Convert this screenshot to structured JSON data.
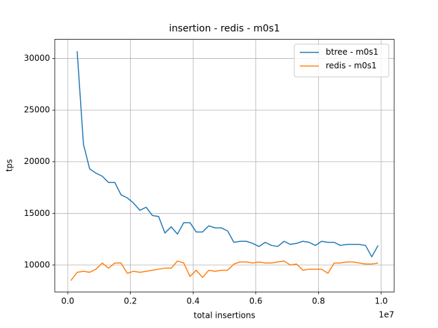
{
  "chart_data": {
    "type": "line",
    "title": "insertion - redis - m0s1",
    "xlabel": "total insertions",
    "ylabel": "tps",
    "x_offset_label": "1e7",
    "x": [
      100000,
      300000,
      500000,
      700000,
      900000,
      1100000,
      1300000,
      1500000,
      1700000,
      1900000,
      2100000,
      2300000,
      2500000,
      2700000,
      2900000,
      3100000,
      3300000,
      3500000,
      3700000,
      3900000,
      4100000,
      4300000,
      4500000,
      4700000,
      4900000,
      5100000,
      5300000,
      5500000,
      5700000,
      5900000,
      6100000,
      6300000,
      6500000,
      6700000,
      6900000,
      7100000,
      7300000,
      7500000,
      7700000,
      7900000,
      8100000,
      8300000,
      8500000,
      8700000,
      8900000,
      9100000,
      9300000,
      9500000,
      9700000,
      9900000
    ],
    "series": [
      {
        "name": "btree - m0s1",
        "color": "#1f77b4",
        "values": [
          null,
          30700,
          21700,
          19300,
          18900,
          18600,
          18000,
          18000,
          16800,
          16500,
          16000,
          15300,
          15600,
          14800,
          14700,
          13100,
          13700,
          13000,
          14100,
          14100,
          13200,
          13200,
          13800,
          13600,
          13600,
          13300,
          12200,
          12300,
          12300,
          12100,
          11800,
          12200,
          11900,
          11800,
          12300,
          12000,
          12100,
          12300,
          12200,
          11900,
          12300,
          12200,
          12200,
          11900,
          12000,
          12000,
          12000,
          11900,
          10800,
          11900
        ]
      },
      {
        "name": "redis - m0s1",
        "color": "#ff7f0e",
        "values": [
          8500,
          9300,
          9400,
          9300,
          9600,
          10200,
          9700,
          10200,
          10200,
          9200,
          9400,
          9300,
          9400,
          9500,
          9600,
          9700,
          9700,
          10400,
          10200,
          8900,
          9500,
          8800,
          9500,
          9400,
          9500,
          9500,
          10100,
          10300,
          10300,
          10200,
          10300,
          10200,
          10200,
          10300,
          10400,
          10000,
          10100,
          9500,
          9600,
          9600,
          9600,
          9200,
          10200,
          10200,
          10300,
          10300,
          10200,
          10100,
          10100,
          10200
        ]
      }
    ],
    "xlim": [
      -415000,
      10415000
    ],
    "ylim": [
      7400,
      31850
    ],
    "xticks": [
      {
        "value": 0,
        "label": "0.0"
      },
      {
        "value": 2000000,
        "label": "0.2"
      },
      {
        "value": 4000000,
        "label": "0.4"
      },
      {
        "value": 6000000,
        "label": "0.6"
      },
      {
        "value": 8000000,
        "label": "0.8"
      },
      {
        "value": 10000000,
        "label": "1.0"
      }
    ],
    "yticks": [
      10000,
      15000,
      20000,
      25000,
      30000
    ],
    "grid": true,
    "legend": "upper right"
  }
}
